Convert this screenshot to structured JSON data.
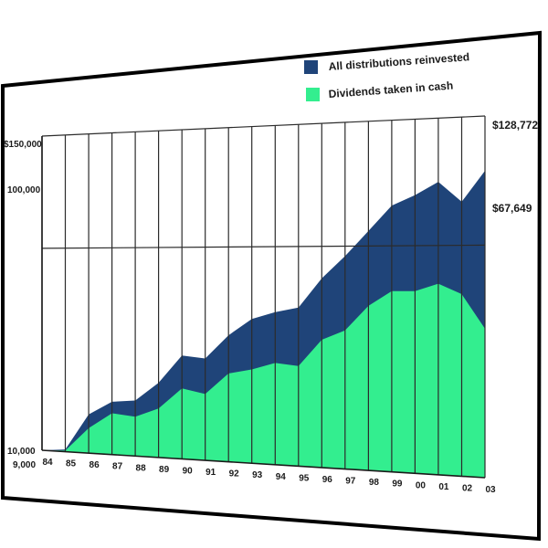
{
  "chart_data": {
    "type": "area",
    "x": [
      "84",
      "85",
      "86",
      "87",
      "88",
      "89",
      "90",
      "91",
      "92",
      "93",
      "94",
      "95",
      "96",
      "97",
      "98",
      "99",
      "00",
      "01",
      "02",
      "03"
    ],
    "y_ticks": [
      "$150,000",
      "100,000",
      "10,000",
      "9,000"
    ],
    "series": [
      {
        "name": "All distributions reinvested",
        "color": "#1f4479",
        "values": [
          10000,
          11000,
          27000,
          33000,
          34000,
          42000,
          54000,
          53000,
          63000,
          70000,
          73000,
          75000,
          87000,
          96000,
          106000,
          116000,
          120000,
          125000,
          117000,
          128772
        ]
      },
      {
        "name": "Dividends taken in cash",
        "color": "#33ee8f",
        "values": [
          10000,
          10500,
          21000,
          28000,
          27000,
          31000,
          40000,
          38000,
          47000,
          49000,
          52000,
          51000,
          62000,
          66000,
          76000,
          82000,
          82000,
          85000,
          81000,
          67649
        ]
      }
    ],
    "end_labels": [
      "$128,772",
      "$67,649"
    ],
    "legend": [
      {
        "label": "All distributions reinvested",
        "color": "#1f4479"
      },
      {
        "label": "Dividends taken in cash",
        "color": "#33ee8f"
      }
    ],
    "legend_position": "top-right",
    "grid": true,
    "ylim": [
      9000,
      150000
    ]
  }
}
